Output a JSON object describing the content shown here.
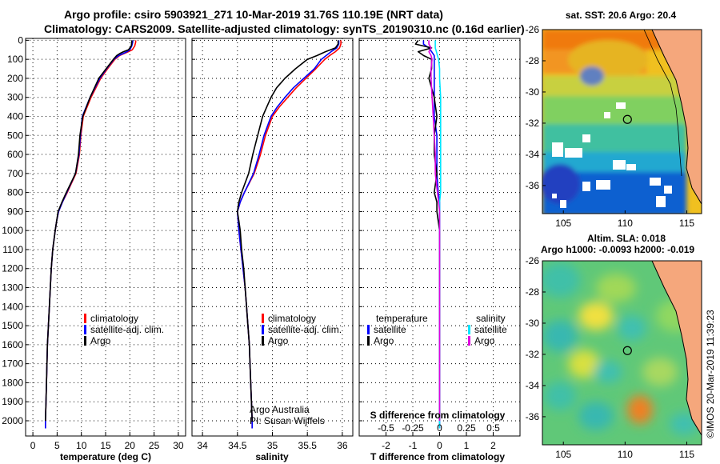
{
  "header": {
    "title_line1": "Argo profile: csiro 5903921_271 10-Mar-2019 31.76S 110.19E (NRT data)",
    "title_line2": "Climatology: CARS2009. Satellite-adjusted climatology: synTS_20190310.nc (0.16d earlier)"
  },
  "colors": {
    "climatology": "#ff0000",
    "satellite": "#0000ff",
    "argo": "#000000",
    "satellite_salinity": "#00e5ff",
    "argo_salinity": "#e000e0"
  },
  "depth_ticks": [
    0,
    100,
    200,
    300,
    400,
    500,
    600,
    700,
    800,
    900,
    1000,
    1100,
    1200,
    1300,
    1400,
    1500,
    1600,
    1700,
    1800,
    1900,
    2000
  ],
  "chart_data": [
    {
      "type": "line",
      "id": "temperature",
      "xlabel": "temperature (deg C)",
      "xlim": [
        -1.5,
        31.5
      ],
      "ylim": [
        2080,
        -10
      ],
      "xticks": [
        0,
        5,
        10,
        15,
        20,
        25,
        30
      ],
      "legend": [
        "climatology",
        "satellite-adj. clim.",
        "Argo"
      ],
      "depth": [
        0,
        10,
        30,
        50,
        60,
        70,
        80,
        100,
        150,
        200,
        300,
        400,
        500,
        600,
        700,
        800,
        850,
        900,
        950,
        1000,
        1100,
        1200,
        1300,
        1400,
        1500,
        1600,
        1700,
        1800,
        1900,
        2000,
        2040
      ],
      "series": [
        {
          "name": "climatology",
          "values": [
            21.2,
            21.2,
            21.0,
            20.5,
            19.7,
            18.8,
            17.9,
            16.9,
            15.4,
            14.0,
            12.0,
            10.4,
            9.9,
            9.6,
            8.9,
            7.1,
            6.1,
            5.3,
            4.9,
            4.6,
            4.1,
            3.8,
            3.6,
            3.4,
            3.2,
            3.0,
            2.9,
            2.8,
            2.7,
            2.6,
            2.6
          ]
        },
        {
          "name": "satellite-adj. clim.",
          "values": [
            20.6,
            20.6,
            20.4,
            20.0,
            19.4,
            18.6,
            17.7,
            16.7,
            15.2,
            13.8,
            11.8,
            10.2,
            9.8,
            9.5,
            8.8,
            7.0,
            6.1,
            5.3,
            4.9,
            4.6,
            4.1,
            3.8,
            3.6,
            3.4,
            3.2,
            3.0,
            2.9,
            2.8,
            2.7,
            2.6,
            2.6
          ]
        },
        {
          "name": "Argo",
          "values": [
            20.4,
            20.4,
            20.3,
            19.7,
            18.7,
            17.9,
            17.3,
            16.6,
            15.1,
            13.6,
            11.8,
            10.3,
            9.7,
            9.4,
            8.8,
            6.9,
            6.0,
            5.2,
            4.9,
            4.6,
            4.1,
            3.8,
            3.6,
            3.4,
            3.2,
            3.0,
            2.9,
            2.8,
            2.7,
            2.6,
            null
          ]
        }
      ]
    },
    {
      "type": "line",
      "id": "salinity",
      "xlabel": "salinity",
      "xlim": [
        33.85,
        36.15
      ],
      "ylim": [
        2080,
        -10
      ],
      "xticks": [
        34,
        34.5,
        35,
        35.5,
        36
      ],
      "legend": [
        "climatology",
        "satellite-adj. clim.",
        "Argo"
      ],
      "note": [
        "Argo Australia",
        "PI: Susan Wijffels"
      ],
      "depth": [
        0,
        20,
        40,
        60,
        80,
        100,
        150,
        200,
        250,
        300,
        350,
        400,
        500,
        600,
        700,
        800,
        850,
        900,
        950,
        1000,
        1100,
        1200,
        1300,
        1400,
        1500,
        1600,
        1700,
        1800,
        1900,
        2000,
        2040
      ],
      "series": [
        {
          "name": "climatology",
          "values": [
            35.98,
            35.98,
            35.96,
            35.9,
            35.82,
            35.75,
            35.62,
            35.48,
            35.34,
            35.22,
            35.1,
            35.0,
            34.9,
            34.83,
            34.74,
            34.6,
            34.54,
            34.5,
            34.51,
            34.52,
            34.55,
            34.58,
            34.61,
            34.63,
            34.65,
            34.67,
            34.68,
            34.69,
            34.7,
            34.71,
            34.71
          ]
        },
        {
          "name": "satellite-adj. clim.",
          "values": [
            35.95,
            35.95,
            35.92,
            35.84,
            35.77,
            35.7,
            35.6,
            35.45,
            35.3,
            35.18,
            35.07,
            34.98,
            34.88,
            34.81,
            34.73,
            34.6,
            34.54,
            34.5,
            34.51,
            34.52,
            34.55,
            34.58,
            34.61,
            34.63,
            34.65,
            34.67,
            34.68,
            34.69,
            34.7,
            34.71,
            34.71
          ]
        },
        {
          "name": "Argo",
          "values": [
            35.94,
            35.94,
            35.9,
            35.76,
            35.64,
            35.5,
            35.33,
            35.18,
            35.06,
            34.98,
            34.92,
            34.86,
            34.79,
            34.72,
            34.66,
            34.56,
            34.52,
            34.5,
            34.52,
            34.54,
            34.56,
            34.59,
            34.61,
            34.63,
            34.65,
            34.67,
            34.68,
            34.69,
            34.7,
            34.71,
            null
          ]
        }
      ]
    },
    {
      "type": "line",
      "id": "difference",
      "xlabel": "T difference from climatology",
      "xlabel_top": "S difference from climatology",
      "xlim": [
        -3,
        3
      ],
      "ylim": [
        2080,
        -10
      ],
      "xticks": [
        -2,
        -1,
        0,
        1,
        2
      ],
      "xticklabels": [
        "-2",
        "-1",
        "0",
        "1",
        "2"
      ],
      "top_ticks": [
        -0.5,
        -0.25,
        0,
        0.25,
        0.5
      ],
      "top_ticklabels": [
        "-0.5",
        "-0.25",
        "0",
        "0.25",
        "0.5"
      ],
      "legend_t_header": "temperature",
      "legend_s_header": "salinity",
      "legend_t": [
        "satellite",
        "Argo"
      ],
      "legend_s": [
        "satellite",
        "Argo"
      ],
      "depth": [
        0,
        20,
        40,
        60,
        80,
        100,
        150,
        200,
        300,
        400,
        500,
        600,
        700,
        800,
        850,
        900,
        1000,
        1100,
        1200,
        1400,
        1600,
        1800,
        2000,
        2040
      ],
      "series": [
        {
          "name": "T satellite",
          "values": [
            -0.6,
            -0.6,
            -0.4,
            -0.3,
            -0.2,
            -0.2,
            -0.2,
            -0.2,
            -0.2,
            -0.2,
            -0.1,
            -0.1,
            -0.1,
            -0.05,
            0,
            0,
            0,
            0,
            0,
            0,
            0,
            0,
            0,
            0
          ]
        },
        {
          "name": "T Argo",
          "values": [
            -0.8,
            -0.9,
            -0.3,
            -0.8,
            -0.6,
            -0.3,
            -0.3,
            -0.4,
            -0.2,
            -0.1,
            -0.2,
            -0.2,
            -0.1,
            -0.2,
            -0.1,
            -0.1,
            0,
            0,
            0,
            0,
            0,
            0,
            0,
            null
          ]
        },
        {
          "name": "S satellite",
          "values": [
            -0.04,
            -0.04,
            -0.04,
            -0.03,
            -0.02,
            -0.01,
            0,
            0,
            0.01,
            0.01,
            0.01,
            0.01,
            0.01,
            0.01,
            0,
            0,
            0,
            0,
            0,
            0,
            0,
            0,
            0,
            0
          ]
        },
        {
          "name": "S Argo",
          "values": [
            -0.1,
            -0.1,
            -0.08,
            -0.1,
            -0.08,
            -0.07,
            -0.08,
            -0.08,
            -0.07,
            -0.06,
            -0.05,
            -0.04,
            -0.04,
            -0.02,
            -0.01,
            0,
            0,
            0,
            0,
            0,
            0,
            0,
            0,
            null
          ]
        }
      ]
    }
  ],
  "maps": {
    "sst": {
      "title": "sat. SST: 20.6 Argo: 20.4",
      "xticks": [
        105,
        110,
        115
      ],
      "yticks": [
        -26,
        -28,
        -30,
        -32,
        -34,
        -36
      ],
      "xlim": [
        103.3,
        116.2
      ],
      "ylim": [
        -26,
        -37.8
      ],
      "argo_lon": 110.19,
      "argo_lat": -31.76
    },
    "sla": {
      "title_line1": "Altim. SLA: 0.018",
      "title_line2": "Argo h1000: -0.0093 h2000: -0.019",
      "xticks": [
        105,
        110,
        115
      ],
      "yticks": [
        -26,
        -28,
        -30,
        -32,
        -34,
        -36
      ],
      "xlim": [
        103.3,
        116.2
      ],
      "ylim": [
        -26,
        -37.8
      ],
      "argo_lon": 110.19,
      "argo_lat": -31.76
    }
  },
  "credit": "©IMOS 20-Mar-2019 11:39:23"
}
